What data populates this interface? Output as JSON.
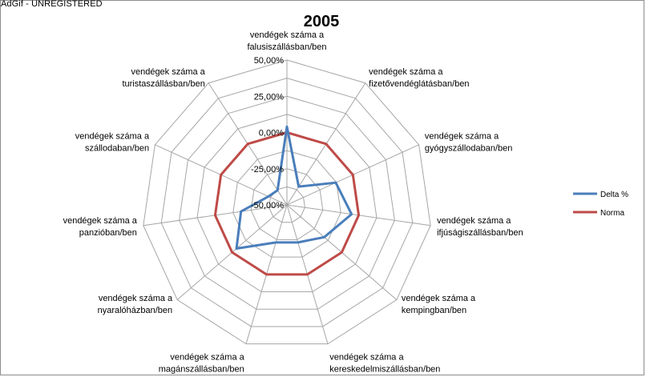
{
  "watermark": "AdGif - UNREGISTERED",
  "chart_data": {
    "type": "radar",
    "title": "2005",
    "categories": [
      [
        "vendégek száma a",
        "falusiszállásban/ben"
      ],
      [
        "vendégek száma a",
        "fizetővendéglátásban/ben"
      ],
      [
        "vendégek száma a",
        "gyógyszállodaban/ben"
      ],
      [
        "vendégek száma a",
        "ifjúságiszállásban/ben"
      ],
      [
        "vendégek száma a",
        "kempingban/ben"
      ],
      [
        "vendégek száma a",
        "kereskedelmiszállásban/ben"
      ],
      [
        "vendégek száma a",
        "magánszállásban/ben"
      ],
      [
        "vendégek száma a",
        "nyaralóházban/ben"
      ],
      [
        "vendégek száma a",
        "panzióban/ben"
      ],
      [
        "vendégek száma a",
        "szállodaban/ben"
      ],
      [
        "vendégek száma a",
        "turistaszállásban/ben"
      ]
    ],
    "rlim": [
      -50,
      50
    ],
    "ticks": [
      -50,
      -25,
      0,
      25,
      50
    ],
    "tick_labels": [
      "-50,00%",
      "-25,00%",
      "0,00%",
      "25,00%",
      "50,00%"
    ],
    "grid": true,
    "legend_position": "right",
    "series": [
      {
        "name": "Delta %",
        "color": "#4a7ebb",
        "values": [
          4,
          -35,
          -13,
          -5,
          -16,
          -23,
          -23,
          -4,
          -18,
          -36,
          -38
        ]
      },
      {
        "name": "Norma",
        "color": "#be4b48",
        "values": [
          0,
          0,
          0,
          0,
          0,
          0,
          0,
          0,
          0,
          0,
          0
        ]
      }
    ]
  }
}
